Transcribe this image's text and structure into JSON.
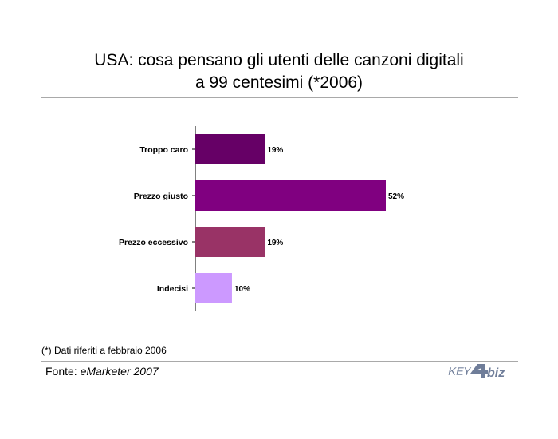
{
  "title_line1": "USA: cosa pensano gli utenti delle canzoni digitali",
  "title_line2": "a 99 centesimi (*2006)",
  "footnote": "(*) Dati riferiti a febbraio 2006",
  "source_label": "Fonte: ",
  "source_name": "eMarketer 2007",
  "logo": {
    "text_key": "KEY",
    "text_biz": "biz",
    "color": "#6f7d99"
  },
  "chart_data": {
    "type": "bar",
    "orientation": "horizontal",
    "title": "USA: cosa pensano gli utenti delle canzoni digitali a 99 centesimi (*2006)",
    "categories": [
      "Troppo caro",
      "Prezzo giusto",
      "Prezzo eccessivo",
      "Indecisi"
    ],
    "values": [
      19,
      52,
      19,
      10
    ],
    "value_labels": [
      "19%",
      "52%",
      "19%",
      "10%"
    ],
    "unit": "%",
    "colors": [
      "#660066",
      "#800080",
      "#993366",
      "#cc99ff"
    ],
    "xlim": [
      0,
      52
    ],
    "grid": false,
    "legend": "none"
  }
}
